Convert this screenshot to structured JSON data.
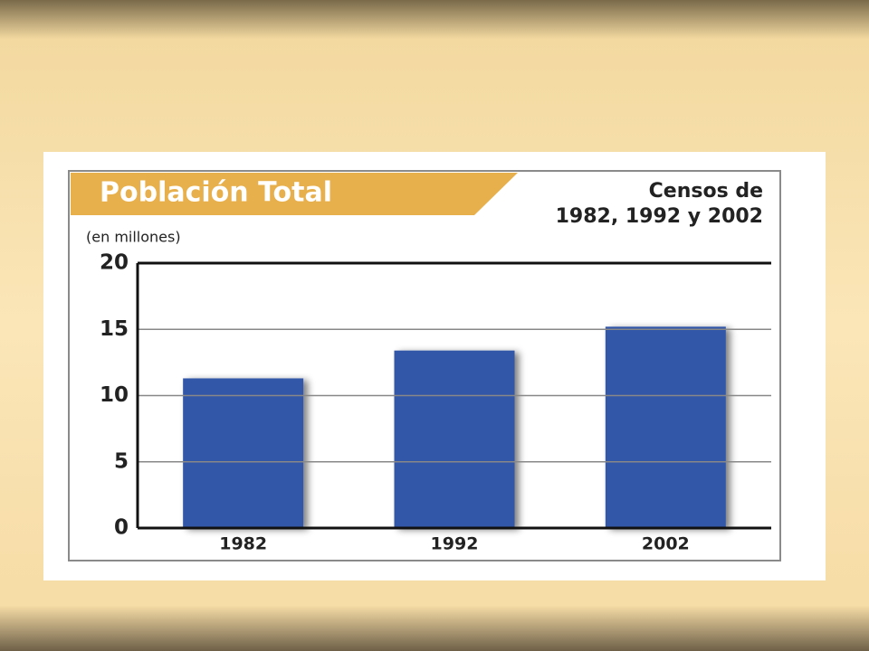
{
  "chart_data": {
    "type": "bar",
    "title": "Población Total",
    "subtitle": [
      "Censos de",
      "1982, 1992 y 2002"
    ],
    "y_label": "(en millones)",
    "categories": [
      "1982",
      "1992",
      "2002"
    ],
    "values": [
      11.3,
      13.4,
      15.2
    ],
    "color": "#3157a8",
    "ylim": [
      0,
      20
    ],
    "yticks": [
      0,
      5,
      10,
      15,
      20
    ],
    "grid": true
  }
}
